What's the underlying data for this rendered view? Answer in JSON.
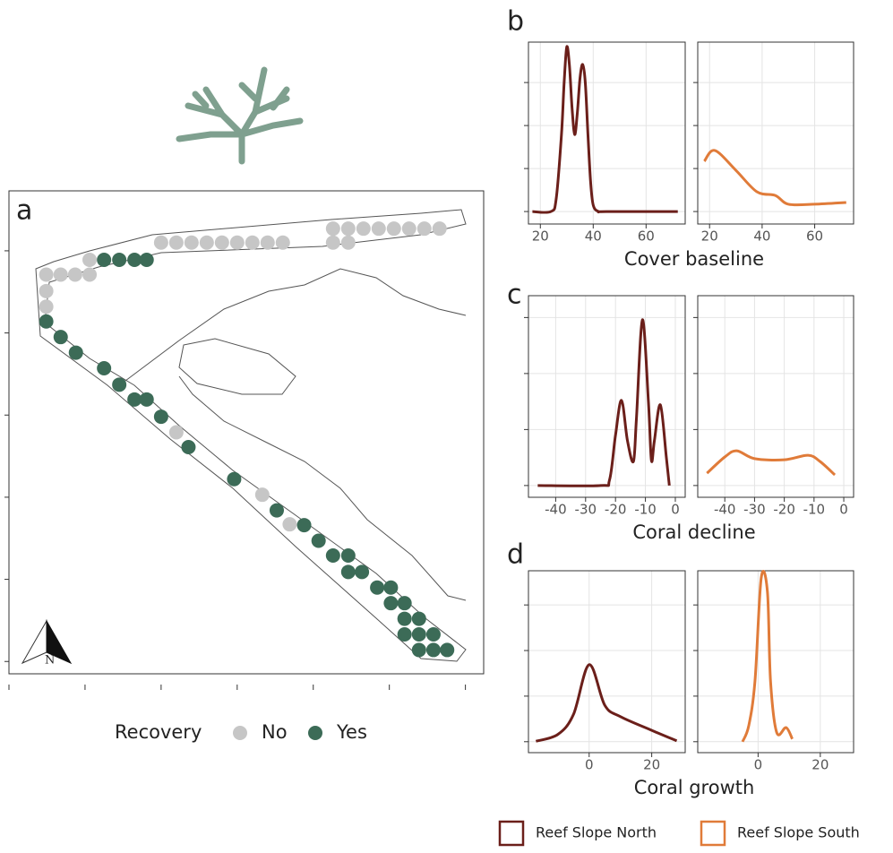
{
  "chart_data": [
    {
      "type": "scatter",
      "label": "a",
      "xlim": [
        0,
        6.24
      ],
      "ylim": [
        -0.15,
        5.73
      ],
      "xticks": [
        0,
        1,
        2,
        3,
        4,
        5,
        6
      ],
      "yticks": [
        0,
        1,
        2,
        3,
        4,
        5
      ],
      "legend_title": "Recovery",
      "series": [
        {
          "name": "No",
          "color": "#c6c6c6",
          "x": [
            2.0,
            2.2,
            2.4,
            2.6,
            2.8,
            3.0,
            3.2,
            3.4,
            3.6,
            4.26,
            4.46,
            4.66,
            4.86,
            5.06,
            5.26,
            5.46,
            5.66,
            4.26,
            4.46,
            1.06,
            0.49,
            0.68,
            0.87,
            1.06,
            0.49,
            0.49,
            2.2,
            3.33,
            3.69
          ],
          "y": [
            5.1,
            5.1,
            5.1,
            5.1,
            5.1,
            5.1,
            5.1,
            5.1,
            5.1,
            5.27,
            5.27,
            5.27,
            5.27,
            5.27,
            5.27,
            5.27,
            5.27,
            5.1,
            5.1,
            4.89,
            4.71,
            4.71,
            4.71,
            4.71,
            4.51,
            4.32,
            2.79,
            2.03,
            1.67
          ]
        },
        {
          "name": "Yes",
          "color": "#3c6b57",
          "x": [
            1.25,
            1.45,
            1.65,
            1.81,
            0.49,
            0.68,
            0.88,
            1.25,
            1.45,
            1.65,
            1.81,
            2.0,
            2.36,
            2.96,
            3.52,
            3.88,
            4.07,
            4.26,
            4.46,
            4.46,
            4.64,
            4.84,
            5.02,
            5.02,
            5.2,
            5.2,
            5.39,
            5.2,
            5.39,
            5.58,
            5.39,
            5.58,
            5.76
          ],
          "y": [
            4.89,
            4.89,
            4.89,
            4.89,
            4.14,
            3.95,
            3.76,
            3.57,
            3.37,
            3.19,
            3.19,
            2.98,
            2.61,
            2.22,
            1.84,
            1.66,
            1.47,
            1.29,
            1.29,
            1.09,
            1.09,
            0.9,
            0.9,
            0.71,
            0.71,
            0.52,
            0.52,
            0.33,
            0.33,
            0.33,
            0.14,
            0.14,
            0.14
          ]
        }
      ]
    },
    {
      "type": "density",
      "label": "b",
      "xlabel": "Cover baseline",
      "xlim": [
        15.5,
        74.8
      ],
      "xticks": [
        20,
        40,
        60
      ],
      "ylim": [
        -0.29,
        3.94
      ],
      "yticks": [
        0,
        1,
        2,
        3
      ],
      "series": [
        {
          "name": "Reef Slope North",
          "color": "#6b1f1a",
          "x": [
            17,
            24,
            26,
            28,
            29,
            30,
            31,
            32,
            33,
            34,
            35,
            36,
            37,
            38,
            39,
            40,
            42,
            45,
            72
          ],
          "values": [
            0,
            0,
            0.3,
            1.8,
            3.0,
            3.83,
            3.4,
            2.4,
            1.79,
            2.3,
            3.1,
            3.42,
            3.0,
            1.8,
            0.7,
            0.15,
            0,
            0,
            0
          ]
        },
        {
          "name": "Reef Slope South",
          "color": "#e07b39",
          "x": [
            18,
            22,
            30,
            38,
            45,
            50,
            60,
            72
          ],
          "values": [
            1.17,
            1.42,
            0.96,
            0.46,
            0.375,
            0.17,
            0.17,
            0.21
          ]
        }
      ]
    },
    {
      "type": "density",
      "label": "c",
      "xlabel": "Coral decline",
      "xlim": [
        -49.1,
        3.3
      ],
      "xticks": [
        -40,
        -30,
        -20,
        -10,
        0
      ],
      "ylim": [
        -0.21,
        3.39
      ],
      "yticks": [
        0,
        1,
        2,
        3
      ],
      "series": [
        {
          "name": "Reef Slope North",
          "color": "#6b1f1a",
          "x": [
            -46,
            -25,
            -22,
            -20,
            -18,
            -16,
            -14,
            -13,
            -11,
            -9,
            -8,
            -7,
            -5,
            -3,
            -2
          ],
          "values": [
            0,
            0,
            0.1,
            0.9,
            1.52,
            0.8,
            0.43,
            1.2,
            2.96,
            1.5,
            0.45,
            0.8,
            1.44,
            0.5,
            0
          ]
        },
        {
          "name": "Reef Slope South",
          "color": "#e07b39",
          "x": [
            -46,
            -40,
            -36,
            -30,
            -20,
            -12,
            -8,
            -3
          ],
          "values": [
            0.22,
            0.51,
            0.62,
            0.48,
            0.46,
            0.54,
            0.43,
            0.19
          ]
        }
      ]
    },
    {
      "type": "density",
      "label": "d",
      "xlabel": "Coral growth",
      "xlim": [
        -19.4,
        30.7
      ],
      "xticks": [
        0,
        20
      ],
      "ylim": [
        -0.24,
        3.75
      ],
      "yticks": [
        0,
        1,
        2,
        3
      ],
      "series": [
        {
          "name": "Reef Slope North",
          "color": "#6b1f1a",
          "x": [
            -17,
            -10,
            -5,
            0,
            5,
            10,
            20,
            28
          ],
          "values": [
            0.01,
            0.16,
            0.6,
            1.69,
            0.8,
            0.55,
            0.25,
            0.02
          ]
        },
        {
          "name": "Reef Slope South",
          "color": "#e07b39",
          "x": [
            -5,
            -3,
            -1,
            1,
            3,
            4,
            6,
            9,
            11
          ],
          "values": [
            0,
            0.35,
            1.33,
            3.59,
            3.29,
            1.33,
            0.2,
            0.31,
            0.06
          ]
        }
      ]
    }
  ]
}
